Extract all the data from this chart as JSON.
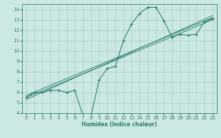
{
  "xlabel": "Humidex (Indice chaleur)",
  "bg_color": "#cce8e4",
  "grid_color": "#aacfcb",
  "line_color": "#2e7d6e",
  "xlim": [
    -0.5,
    23.5
  ],
  "ylim": [
    4,
    14.5
  ],
  "xticks": [
    0,
    1,
    2,
    3,
    4,
    5,
    6,
    7,
    8,
    9,
    10,
    11,
    12,
    13,
    14,
    15,
    16,
    17,
    18,
    19,
    20,
    21,
    22,
    23
  ],
  "yticks": [
    4,
    5,
    6,
    7,
    8,
    9,
    10,
    11,
    12,
    13,
    14
  ],
  "main_x": [
    0,
    1,
    2,
    3,
    4,
    5,
    6,
    7,
    8,
    9,
    10,
    11,
    12,
    13,
    14,
    15,
    16,
    17,
    18,
    19,
    20,
    21,
    22,
    23
  ],
  "main_y": [
    5.5,
    6.0,
    6.0,
    6.2,
    6.2,
    6.0,
    6.2,
    3.8,
    3.7,
    7.2,
    8.3,
    8.5,
    11.0,
    12.6,
    13.6,
    14.2,
    14.2,
    12.9,
    11.3,
    11.6,
    11.5,
    11.6,
    12.8,
    13.1
  ],
  "reg_lines": [
    {
      "x": [
        0,
        23
      ],
      "y": [
        5.5,
        13.0
      ]
    },
    {
      "x": [
        0,
        23
      ],
      "y": [
        5.7,
        13.2
      ]
    },
    {
      "x": [
        0,
        23
      ],
      "y": [
        5.3,
        13.4
      ]
    }
  ]
}
